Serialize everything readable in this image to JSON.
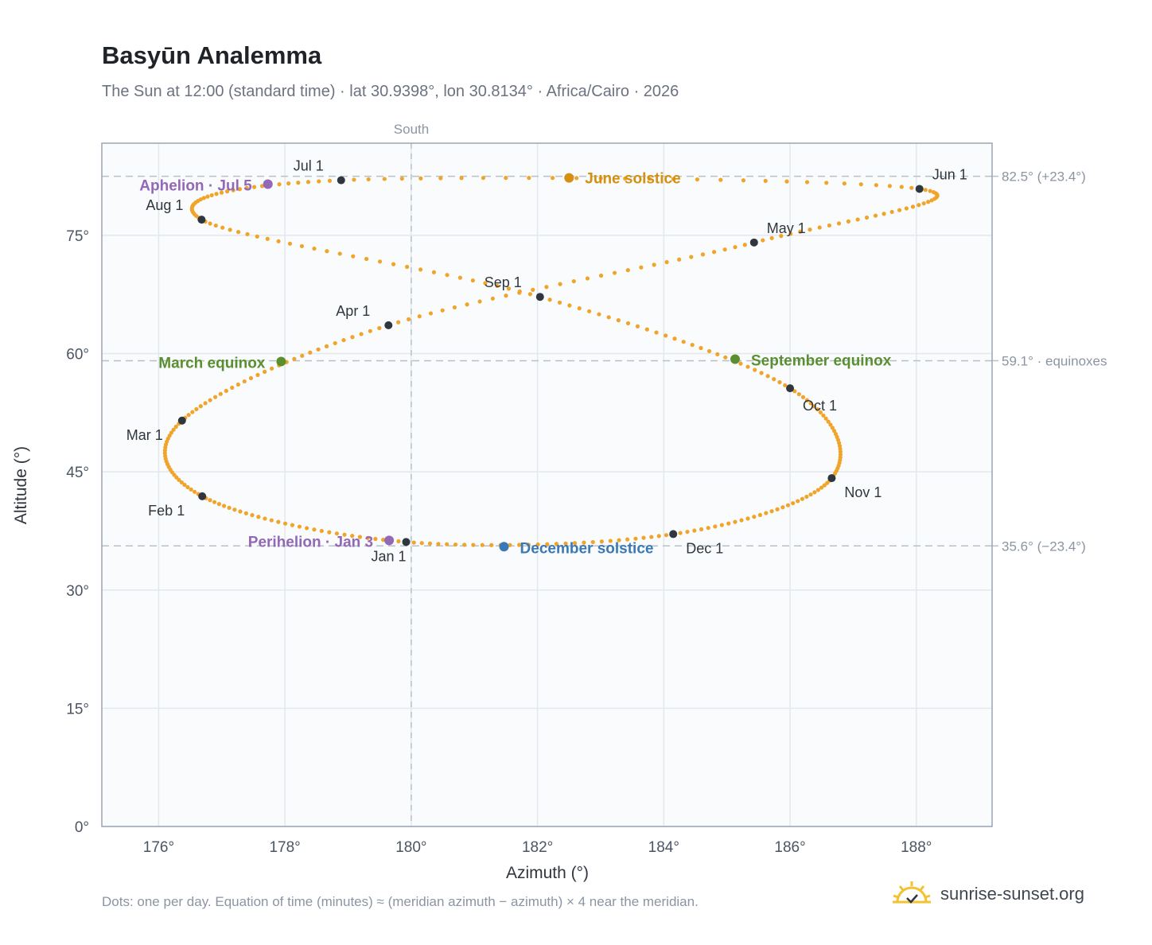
{
  "title": "Basyūn Analemma",
  "subtitle": "The Sun at 12:00 (standard time) · lat 30.9398°, lon 30.8134° · Africa/Cairo · 2026",
  "footnote": "Dots: one per day. Equation of time (minutes) ≈ (meridian azimuth − azimuth) × 4 near the meridian.",
  "brand": {
    "name": "sunrise-sunset.org",
    "icon": "sun-logo-icon"
  },
  "colors": {
    "path": "#f0a52a",
    "month": "#2f3640",
    "june": "#d4900e",
    "equinox": "#5a8f2f",
    "december": "#3a78b8",
    "perihelion": "#9368b7",
    "frame": "#9aa5b3",
    "grid": "#e3e8ee",
    "plotbg": "#f9fbfd",
    "refline": "#b7c1cc"
  },
  "chart_data": {
    "type": "scatter",
    "title": "Basyūn Analemma",
    "xlabel": "Azimuth (°)",
    "ylabel": "Altitude (°)",
    "xlim": [
      175.1,
      189.2
    ],
    "ylim": [
      0,
      86.7
    ],
    "xticks": [
      176,
      178,
      180,
      182,
      184,
      186,
      188
    ],
    "xtick_labels": [
      "176°",
      "178°",
      "180°",
      "182°",
      "184°",
      "186°",
      "188°"
    ],
    "yticks": [
      0,
      15,
      30,
      45,
      60,
      75
    ],
    "ytick_labels": [
      "0°",
      "15°",
      "30°",
      "45°",
      "60°",
      "75°"
    ],
    "grid": true,
    "south": {
      "x": 180,
      "label": "South"
    },
    "reference_lines": [
      {
        "y": 82.5,
        "label": "82.5° (+23.4°)"
      },
      {
        "y": 59.1,
        "label": "59.1° · equinoxes"
      },
      {
        "y": 35.6,
        "label": "35.6° (−23.4°)"
      }
    ],
    "months": [
      {
        "label": "Jan 1",
        "x": 179.92,
        "y": 36.1
      },
      {
        "label": "Feb 1",
        "x": 176.69,
        "y": 41.9
      },
      {
        "label": "Mar 1",
        "x": 176.37,
        "y": 51.5
      },
      {
        "label": "Apr 1",
        "x": 179.64,
        "y": 63.6
      },
      {
        "label": "May 1",
        "x": 185.43,
        "y": 74.1
      },
      {
        "label": "Jun 1",
        "x": 188.05,
        "y": 80.9
      },
      {
        "label": "Jul 1",
        "x": 178.89,
        "y": 82.0
      },
      {
        "label": "Aug 1",
        "x": 176.68,
        "y": 77.0
      },
      {
        "label": "Sep 1",
        "x": 182.04,
        "y": 67.2
      },
      {
        "label": "Oct 1",
        "x": 186.0,
        "y": 55.6
      },
      {
        "label": "Nov 1",
        "x": 186.66,
        "y": 44.2
      },
      {
        "label": "Dec 1",
        "x": 184.15,
        "y": 37.1
      }
    ],
    "events": [
      {
        "label": "June solstice",
        "x": 182.5,
        "y": 82.3,
        "colorKey": "june"
      },
      {
        "label": "March equinox",
        "x": 177.94,
        "y": 59.0,
        "colorKey": "equinox"
      },
      {
        "label": "September equinox",
        "x": 185.13,
        "y": 59.3,
        "colorKey": "equinox"
      },
      {
        "label": "December solstice",
        "x": 181.47,
        "y": 35.5,
        "colorKey": "december"
      },
      {
        "label": "Aphelion · Jul 5",
        "x": 177.73,
        "y": 81.5,
        "colorKey": "perihelion"
      },
      {
        "label": "Perihelion · Jan 3",
        "x": 179.65,
        "y": 36.3,
        "colorKey": "perihelion"
      }
    ],
    "path_note": "Dots: one per day."
  }
}
